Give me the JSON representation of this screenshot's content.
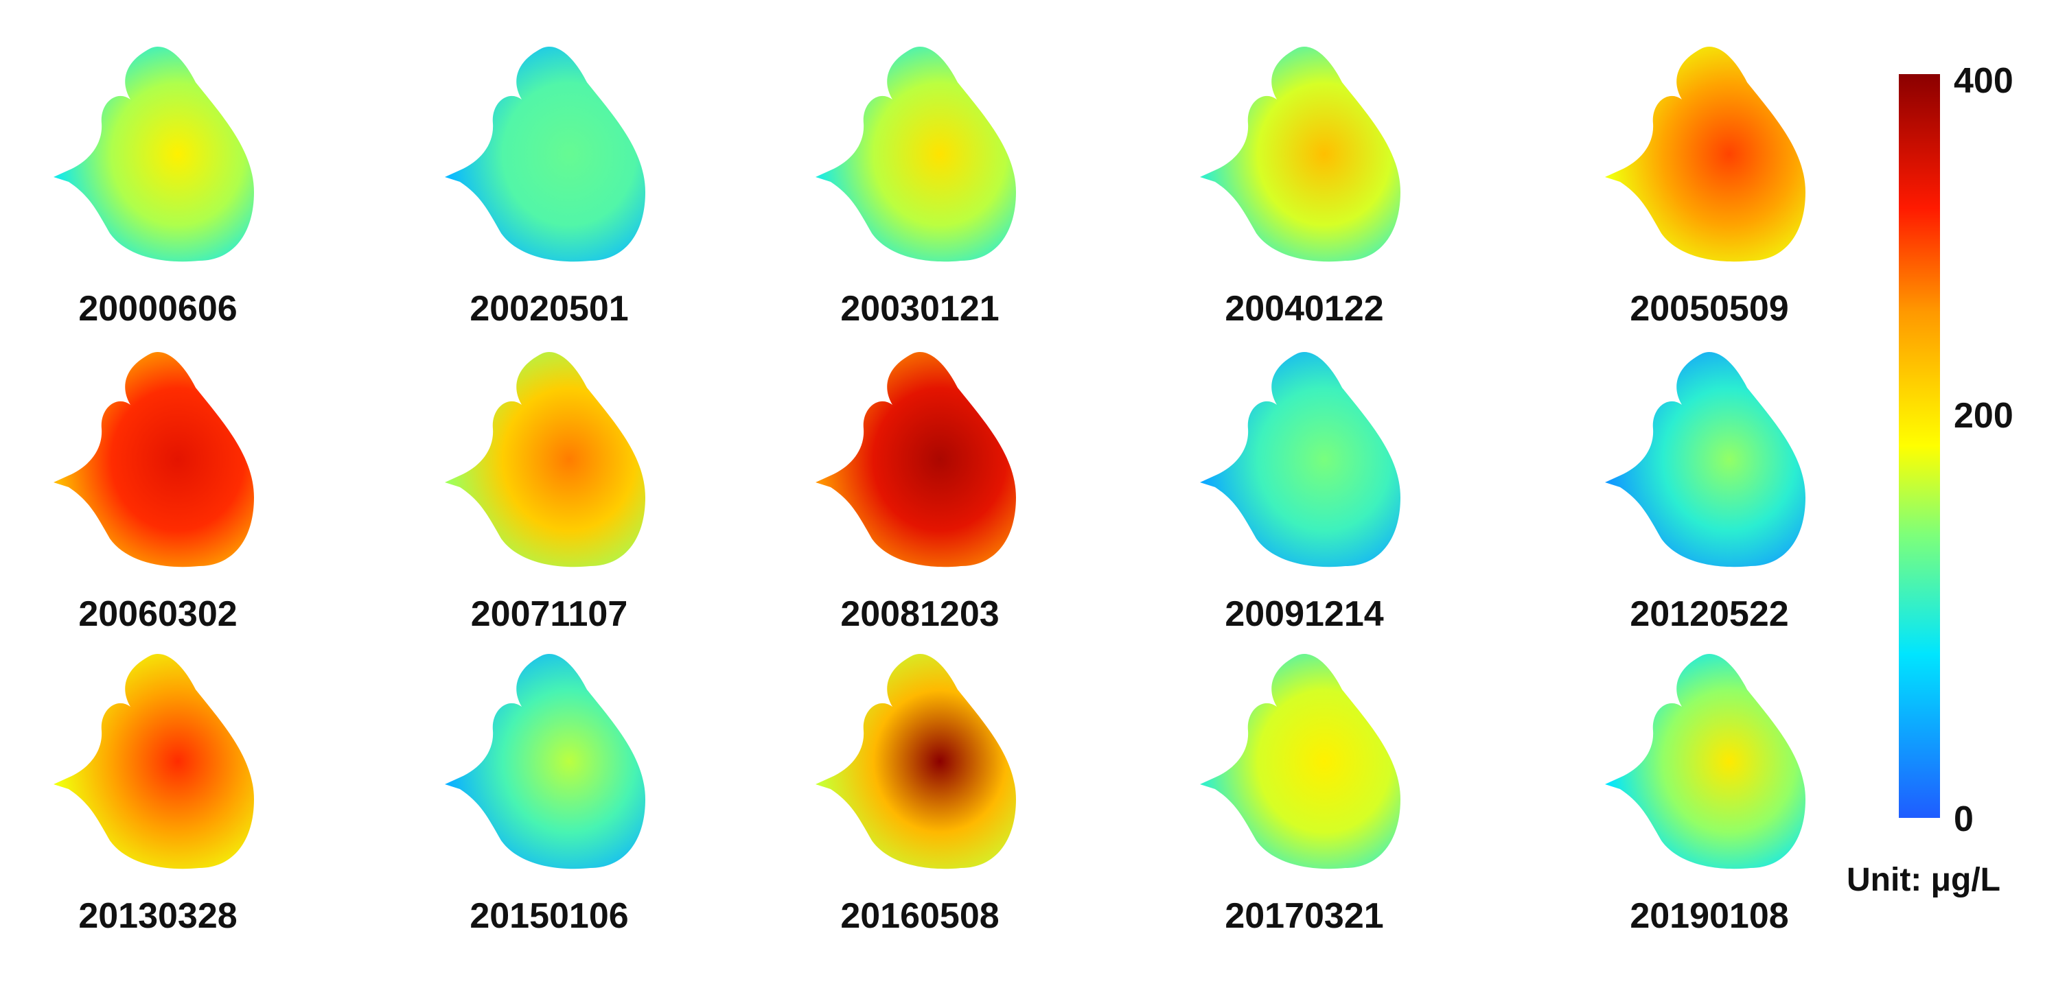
{
  "figure": {
    "colorbar": {
      "min_value": 0,
      "max_value": 400,
      "ticks": [
        "400",
        "200",
        "0"
      ],
      "tick_values": [
        400,
        200,
        0
      ],
      "unit_label": "Unit: μg/L",
      "colors": [
        "#1f5cff",
        "#00e5ff",
        "#7dff7a",
        "#ffff00",
        "#ff9900",
        "#ff1a00",
        "#8b0000"
      ]
    },
    "panels": [
      {
        "date": "20000606",
        "mean_value": 170,
        "peak_value": 210
      },
      {
        "date": "20020501",
        "mean_value": 130,
        "peak_value": 140
      },
      {
        "date": "20030121",
        "mean_value": 175,
        "peak_value": 220
      },
      {
        "date": "20040122",
        "mean_value": 185,
        "peak_value": 245
      },
      {
        "date": "20050509",
        "mean_value": 265,
        "peak_value": 310
      },
      {
        "date": "20060302",
        "mean_value": 320,
        "peak_value": 345
      },
      {
        "date": "20071107",
        "mean_value": 235,
        "peak_value": 285
      },
      {
        "date": "20081203",
        "mean_value": 345,
        "peak_value": 380
      },
      {
        "date": "20091214",
        "mean_value": 120,
        "peak_value": 150
      },
      {
        "date": "20120522",
        "mean_value": 110,
        "peak_value": 160
      },
      {
        "date": "20130328",
        "mean_value": 265,
        "peak_value": 320
      },
      {
        "date": "20150106",
        "mean_value": 125,
        "peak_value": 175
      },
      {
        "date": "20160508",
        "mean_value": 250,
        "peak_value": 400
      },
      {
        "date": "20170321",
        "mean_value": 185,
        "peak_value": 210
      },
      {
        "date": "20190108",
        "mean_value": 160,
        "peak_value": 215
      }
    ]
  }
}
